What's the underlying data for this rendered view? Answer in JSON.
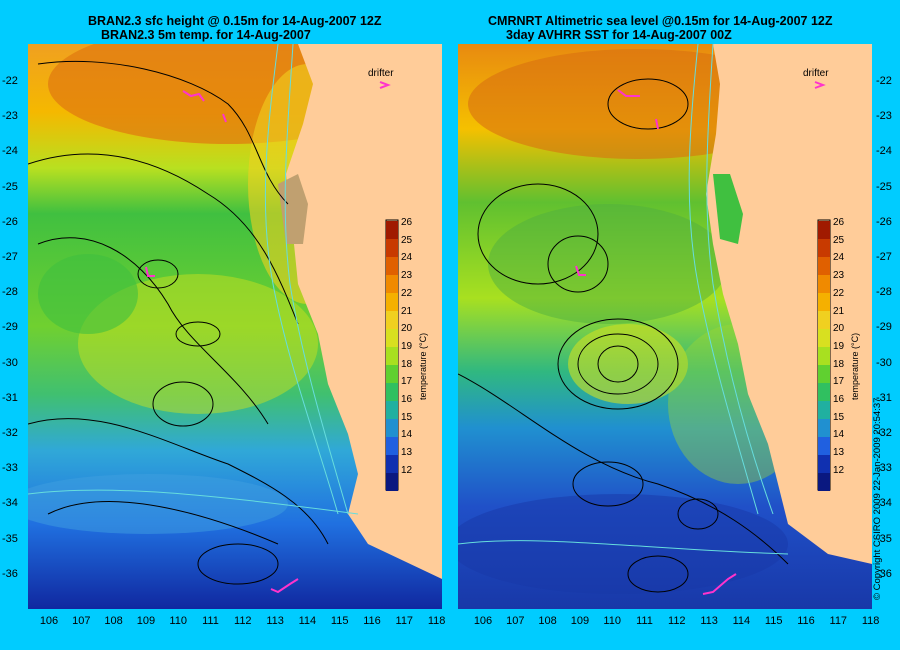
{
  "left_panel": {
    "title_line1": "BRAN2.3 sfc height @ 0.15m for 14-Aug-2007 12Z",
    "title_line2": "BRAN2.3 5m temp. for 14-Aug-2007",
    "drifter_label": "drifter",
    "colorbar_label": "temperature (°C)"
  },
  "right_panel": {
    "title_line1": "CMRNRT Altimetric sea level  @0.15m  for 14-Aug-2007 12Z",
    "title_line2": "3day AVHRR SST for 14-Aug-2007 00Z",
    "drifter_label": "drifter",
    "colorbar_label": "temperature (°C)"
  },
  "axes": {
    "latitudes": [
      "-22",
      "-23",
      "-24",
      "-25",
      "-26",
      "-27",
      "-28",
      "-29",
      "-30",
      "-31",
      "-32",
      "-33",
      "-34",
      "-35",
      "-36"
    ],
    "longitudes": [
      "106",
      "107",
      "108",
      "109",
      "110",
      "111",
      "112",
      "113",
      "114",
      "115",
      "116",
      "117",
      "118"
    ]
  },
  "colorbar": {
    "ticks": [
      "26",
      "25",
      "24",
      "23",
      "22",
      "21",
      "20",
      "19",
      "18",
      "17",
      "16",
      "15",
      "14",
      "13",
      "12"
    ],
    "colors": [
      "#a01a00",
      "#c83a00",
      "#e06000",
      "#f08a00",
      "#f5b000",
      "#f0d020",
      "#d8e020",
      "#a8e020",
      "#60d030",
      "#30c060",
      "#20b0a0",
      "#2090d0",
      "#2060e0",
      "#1030b0",
      "#0a1880"
    ]
  },
  "copyright": "© Copyright CSIRO 2009   22-Jan-2009 20:54:37",
  "colors": {
    "background": "#00ccff",
    "land": "#ffcc99",
    "drifter": "#ff33cc",
    "bathymetry": "#66dddd"
  }
}
